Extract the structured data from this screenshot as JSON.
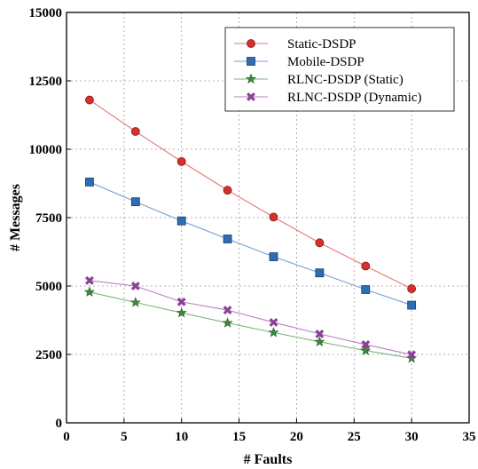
{
  "chart_data": {
    "type": "line",
    "xlabel": "# Faults",
    "ylabel": "# Messages",
    "xlim": [
      0,
      35
    ],
    "ylim": [
      0,
      15000
    ],
    "xticks": [
      0,
      5,
      10,
      15,
      20,
      25,
      30,
      35
    ],
    "yticks": [
      0,
      2500,
      5000,
      7500,
      10000,
      12500,
      15000
    ],
    "grid": true,
    "legend_position": "top-right",
    "x": [
      2,
      6,
      10,
      14,
      18,
      22,
      26,
      30
    ],
    "series": [
      {
        "name": "Static-DSDP",
        "color": "#d9302b",
        "marker": "circle",
        "values": [
          11800,
          10650,
          9550,
          8500,
          7520,
          6580,
          5730,
          4900
        ]
      },
      {
        "name": "Mobile-DSDP",
        "color": "#2e6cb5",
        "marker": "square",
        "values": [
          8800,
          8080,
          7380,
          6720,
          6070,
          5480,
          4870,
          4300
        ]
      },
      {
        "name": "RLNC-DSDP (Static)",
        "color": "#3a8a3a",
        "marker": "star",
        "values": [
          4780,
          4400,
          4020,
          3650,
          3300,
          2960,
          2640,
          2360
        ]
      },
      {
        "name": "RLNC-DSDP (Dynamic)",
        "color": "#8c3f99",
        "marker": "x",
        "values": [
          5200,
          5000,
          4420,
          4120,
          3670,
          3250,
          2860,
          2490
        ]
      }
    ]
  }
}
